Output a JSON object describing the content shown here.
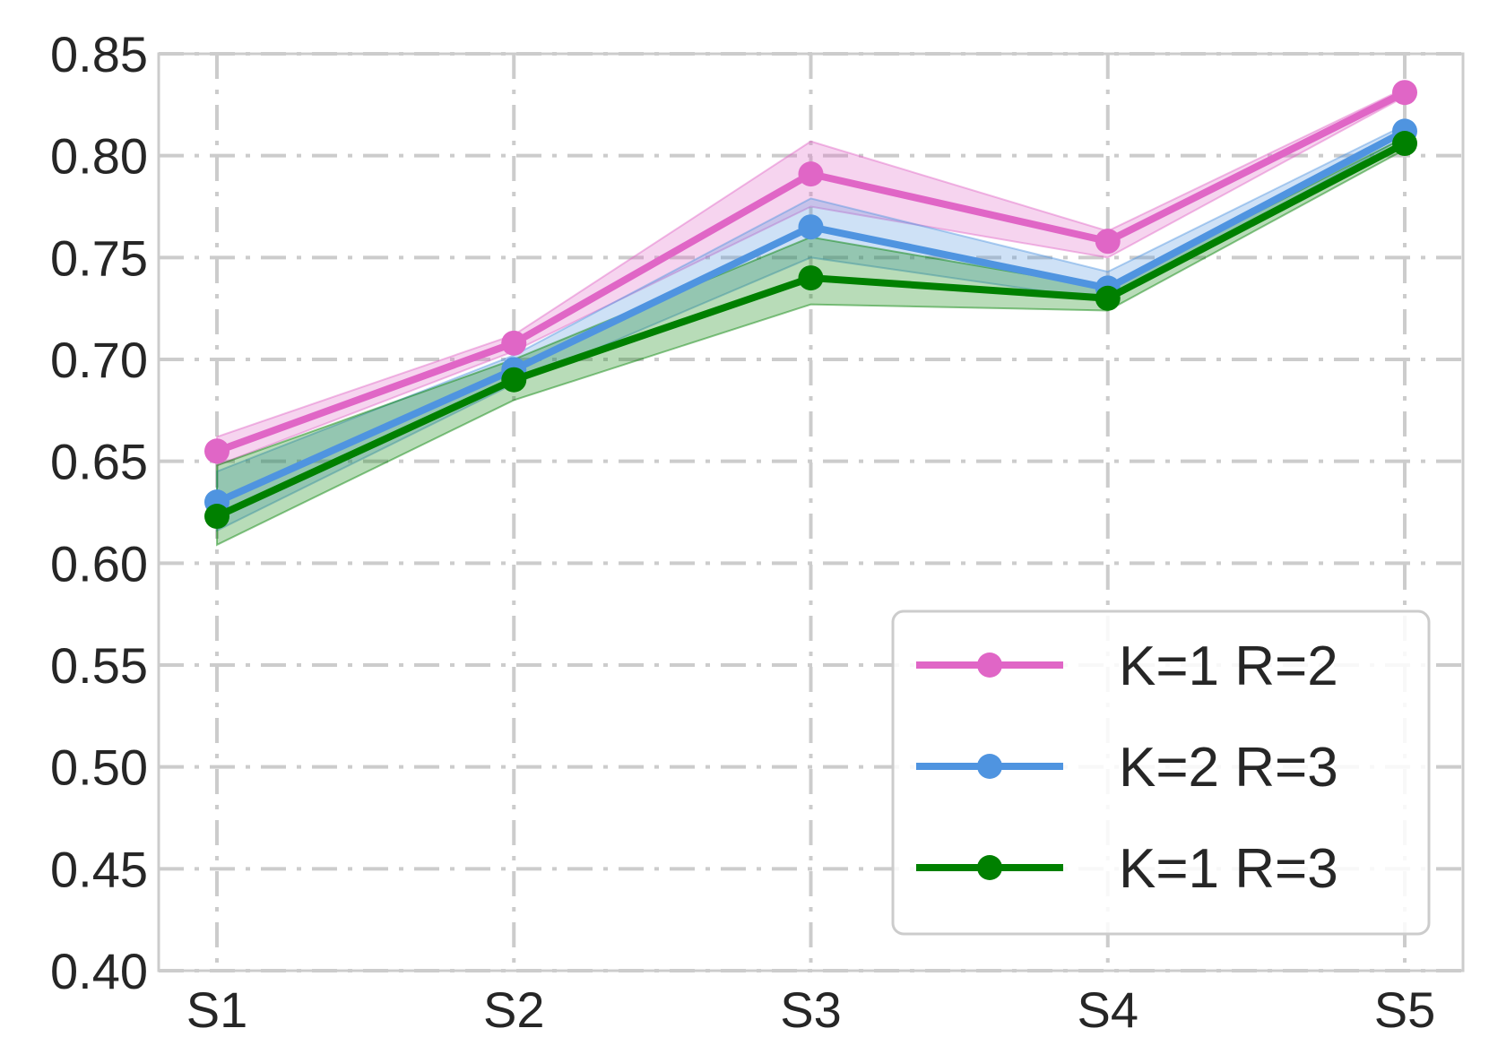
{
  "chart_data": {
    "type": "line",
    "title": "",
    "xlabel": "",
    "ylabel": "",
    "categories": [
      "S1",
      "S2",
      "S3",
      "S4",
      "S5"
    ],
    "ylim": [
      0.4,
      0.85
    ],
    "yticks": [
      "0.40",
      "0.45",
      "0.50",
      "0.55",
      "0.60",
      "0.65",
      "0.70",
      "0.75",
      "0.80",
      "0.85"
    ],
    "grid": true,
    "legend_position": "bottom-right",
    "series": [
      {
        "name": "K=1 R=2",
        "color": "#e066c6",
        "values": [
          0.655,
          0.708,
          0.791,
          0.758,
          0.831
        ],
        "lower": [
          0.648,
          0.704,
          0.775,
          0.75,
          0.829
        ],
        "upper": [
          0.662,
          0.712,
          0.807,
          0.763,
          0.833
        ]
      },
      {
        "name": "K=2 R=3",
        "color": "#4f94e0",
        "values": [
          0.63,
          0.695,
          0.765,
          0.735,
          0.812
        ],
        "lower": [
          0.616,
          0.688,
          0.75,
          0.729,
          0.809
        ],
        "upper": [
          0.645,
          0.702,
          0.779,
          0.743,
          0.815
        ]
      },
      {
        "name": "K=1 R=3",
        "color": "#008000",
        "values": [
          0.623,
          0.69,
          0.74,
          0.73,
          0.806
        ],
        "lower": [
          0.609,
          0.68,
          0.727,
          0.724,
          0.803
        ],
        "upper": [
          0.648,
          0.7,
          0.76,
          0.735,
          0.809
        ]
      }
    ]
  }
}
